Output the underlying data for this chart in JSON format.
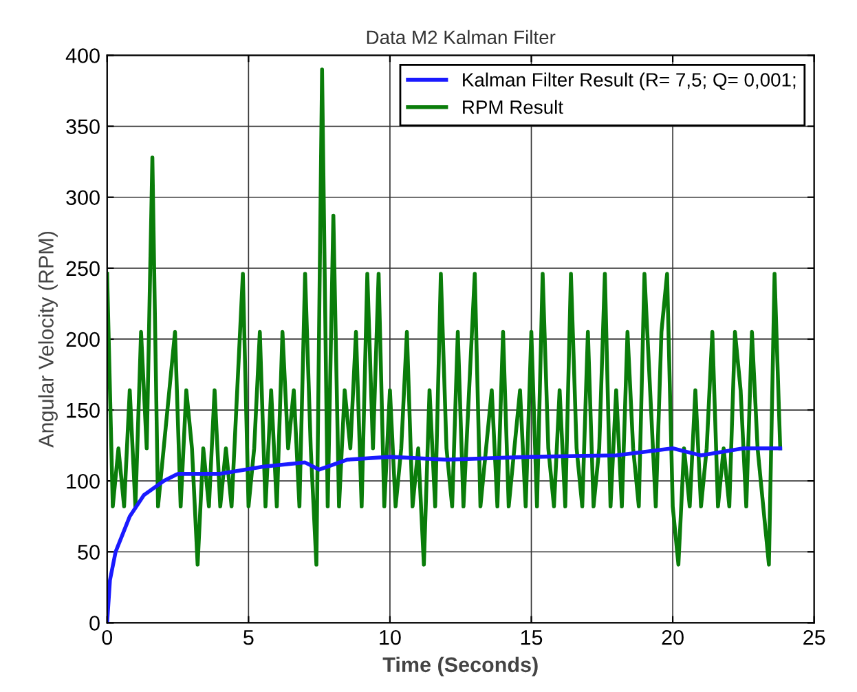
{
  "chart_data": {
    "type": "line",
    "title": "Data M2 Kalman Filter",
    "xlabel": "Time (Seconds)",
    "ylabel": "Angular Velocity (RPM)",
    "xlim": [
      0,
      25
    ],
    "xticks": [
      0,
      5,
      10,
      15,
      20,
      25
    ],
    "ylim": [
      0,
      400
    ],
    "yticks": [
      0,
      50,
      100,
      150,
      200,
      250,
      300,
      350,
      400
    ],
    "grid": true,
    "legend": "top right",
    "marker": "none",
    "line_style": "solid",
    "series": [
      {
        "name": "RPM Result",
        "color": "#0a7d0a",
        "x": [
          0.0,
          0.2,
          0.4,
          0.6,
          0.8,
          1.0,
          1.2,
          1.4,
          1.6,
          1.8,
          2.0,
          2.2,
          2.4,
          2.6,
          2.8,
          3.0,
          3.2,
          3.4,
          3.6,
          3.8,
          4.0,
          4.2,
          4.4,
          4.6,
          4.8,
          5.0,
          5.2,
          5.4,
          5.6,
          5.8,
          6.0,
          6.2,
          6.4,
          6.6,
          6.8,
          7.0,
          7.2,
          7.4,
          7.6,
          7.8,
          8.0,
          8.2,
          8.4,
          8.6,
          8.8,
          9.0,
          9.2,
          9.4,
          9.6,
          9.8,
          10.0,
          10.2,
          10.4,
          10.6,
          10.8,
          11.0,
          11.2,
          11.4,
          11.6,
          11.8,
          12.0,
          12.2,
          12.4,
          12.6,
          12.8,
          13.0,
          13.2,
          13.4,
          13.6,
          13.8,
          14.0,
          14.2,
          14.4,
          14.6,
          14.8,
          15.0,
          15.2,
          15.4,
          15.6,
          15.8,
          16.0,
          16.2,
          16.4,
          16.6,
          16.8,
          17.0,
          17.2,
          17.4,
          17.6,
          17.8,
          18.0,
          18.2,
          18.4,
          18.6,
          18.8,
          19.0,
          19.2,
          19.4,
          19.6,
          19.8,
          20.0,
          20.2,
          20.4,
          20.6,
          20.8,
          21.0,
          21.2,
          21.4,
          21.6,
          21.8,
          22.0,
          22.2,
          22.4,
          22.6,
          22.8,
          23.0,
          23.2,
          23.4,
          23.6,
          23.8
        ],
        "values": [
          246,
          82,
          123,
          82,
          164,
          82,
          205,
          123,
          328,
          82,
          123,
          164,
          205,
          82,
          164,
          123,
          41,
          123,
          82,
          164,
          82,
          123,
          82,
          164,
          246,
          82,
          123,
          205,
          82,
          164,
          82,
          205,
          123,
          164,
          82,
          246,
          123,
          41,
          390,
          82,
          287,
          82,
          164,
          123,
          205,
          82,
          246,
          123,
          246,
          82,
          164,
          82,
          123,
          205,
          82,
          123,
          41,
          164,
          82,
          246,
          123,
          82,
          205,
          82,
          164,
          246,
          82,
          123,
          164,
          82,
          205,
          82,
          123,
          164,
          82,
          205,
          82,
          246,
          123,
          82,
          164,
          82,
          246,
          123,
          82,
          205,
          82,
          123,
          246,
          82,
          164,
          82,
          205,
          123,
          82,
          246,
          164,
          82,
          205,
          246,
          82,
          41,
          123,
          82,
          164,
          82,
          123,
          205,
          82,
          123,
          82,
          205,
          164,
          82,
          205,
          123,
          82,
          41,
          246,
          123
        ]
      },
      {
        "name": "Kalman Filter Result (R= 7,5; Q= 0,001;",
        "color": "#1a1aff",
        "x": [
          0,
          0.1,
          0.3,
          0.8,
          1.3,
          2.0,
          2.5,
          4.0,
          5.5,
          7.0,
          7.5,
          8.5,
          10,
          12,
          15,
          18,
          20,
          21,
          22.5,
          23.8
        ],
        "values": [
          0,
          30,
          50,
          75,
          90,
          100,
          105,
          105,
          110,
          113,
          108,
          115,
          117,
          115,
          117,
          118,
          123,
          118,
          123,
          123
        ]
      }
    ]
  }
}
